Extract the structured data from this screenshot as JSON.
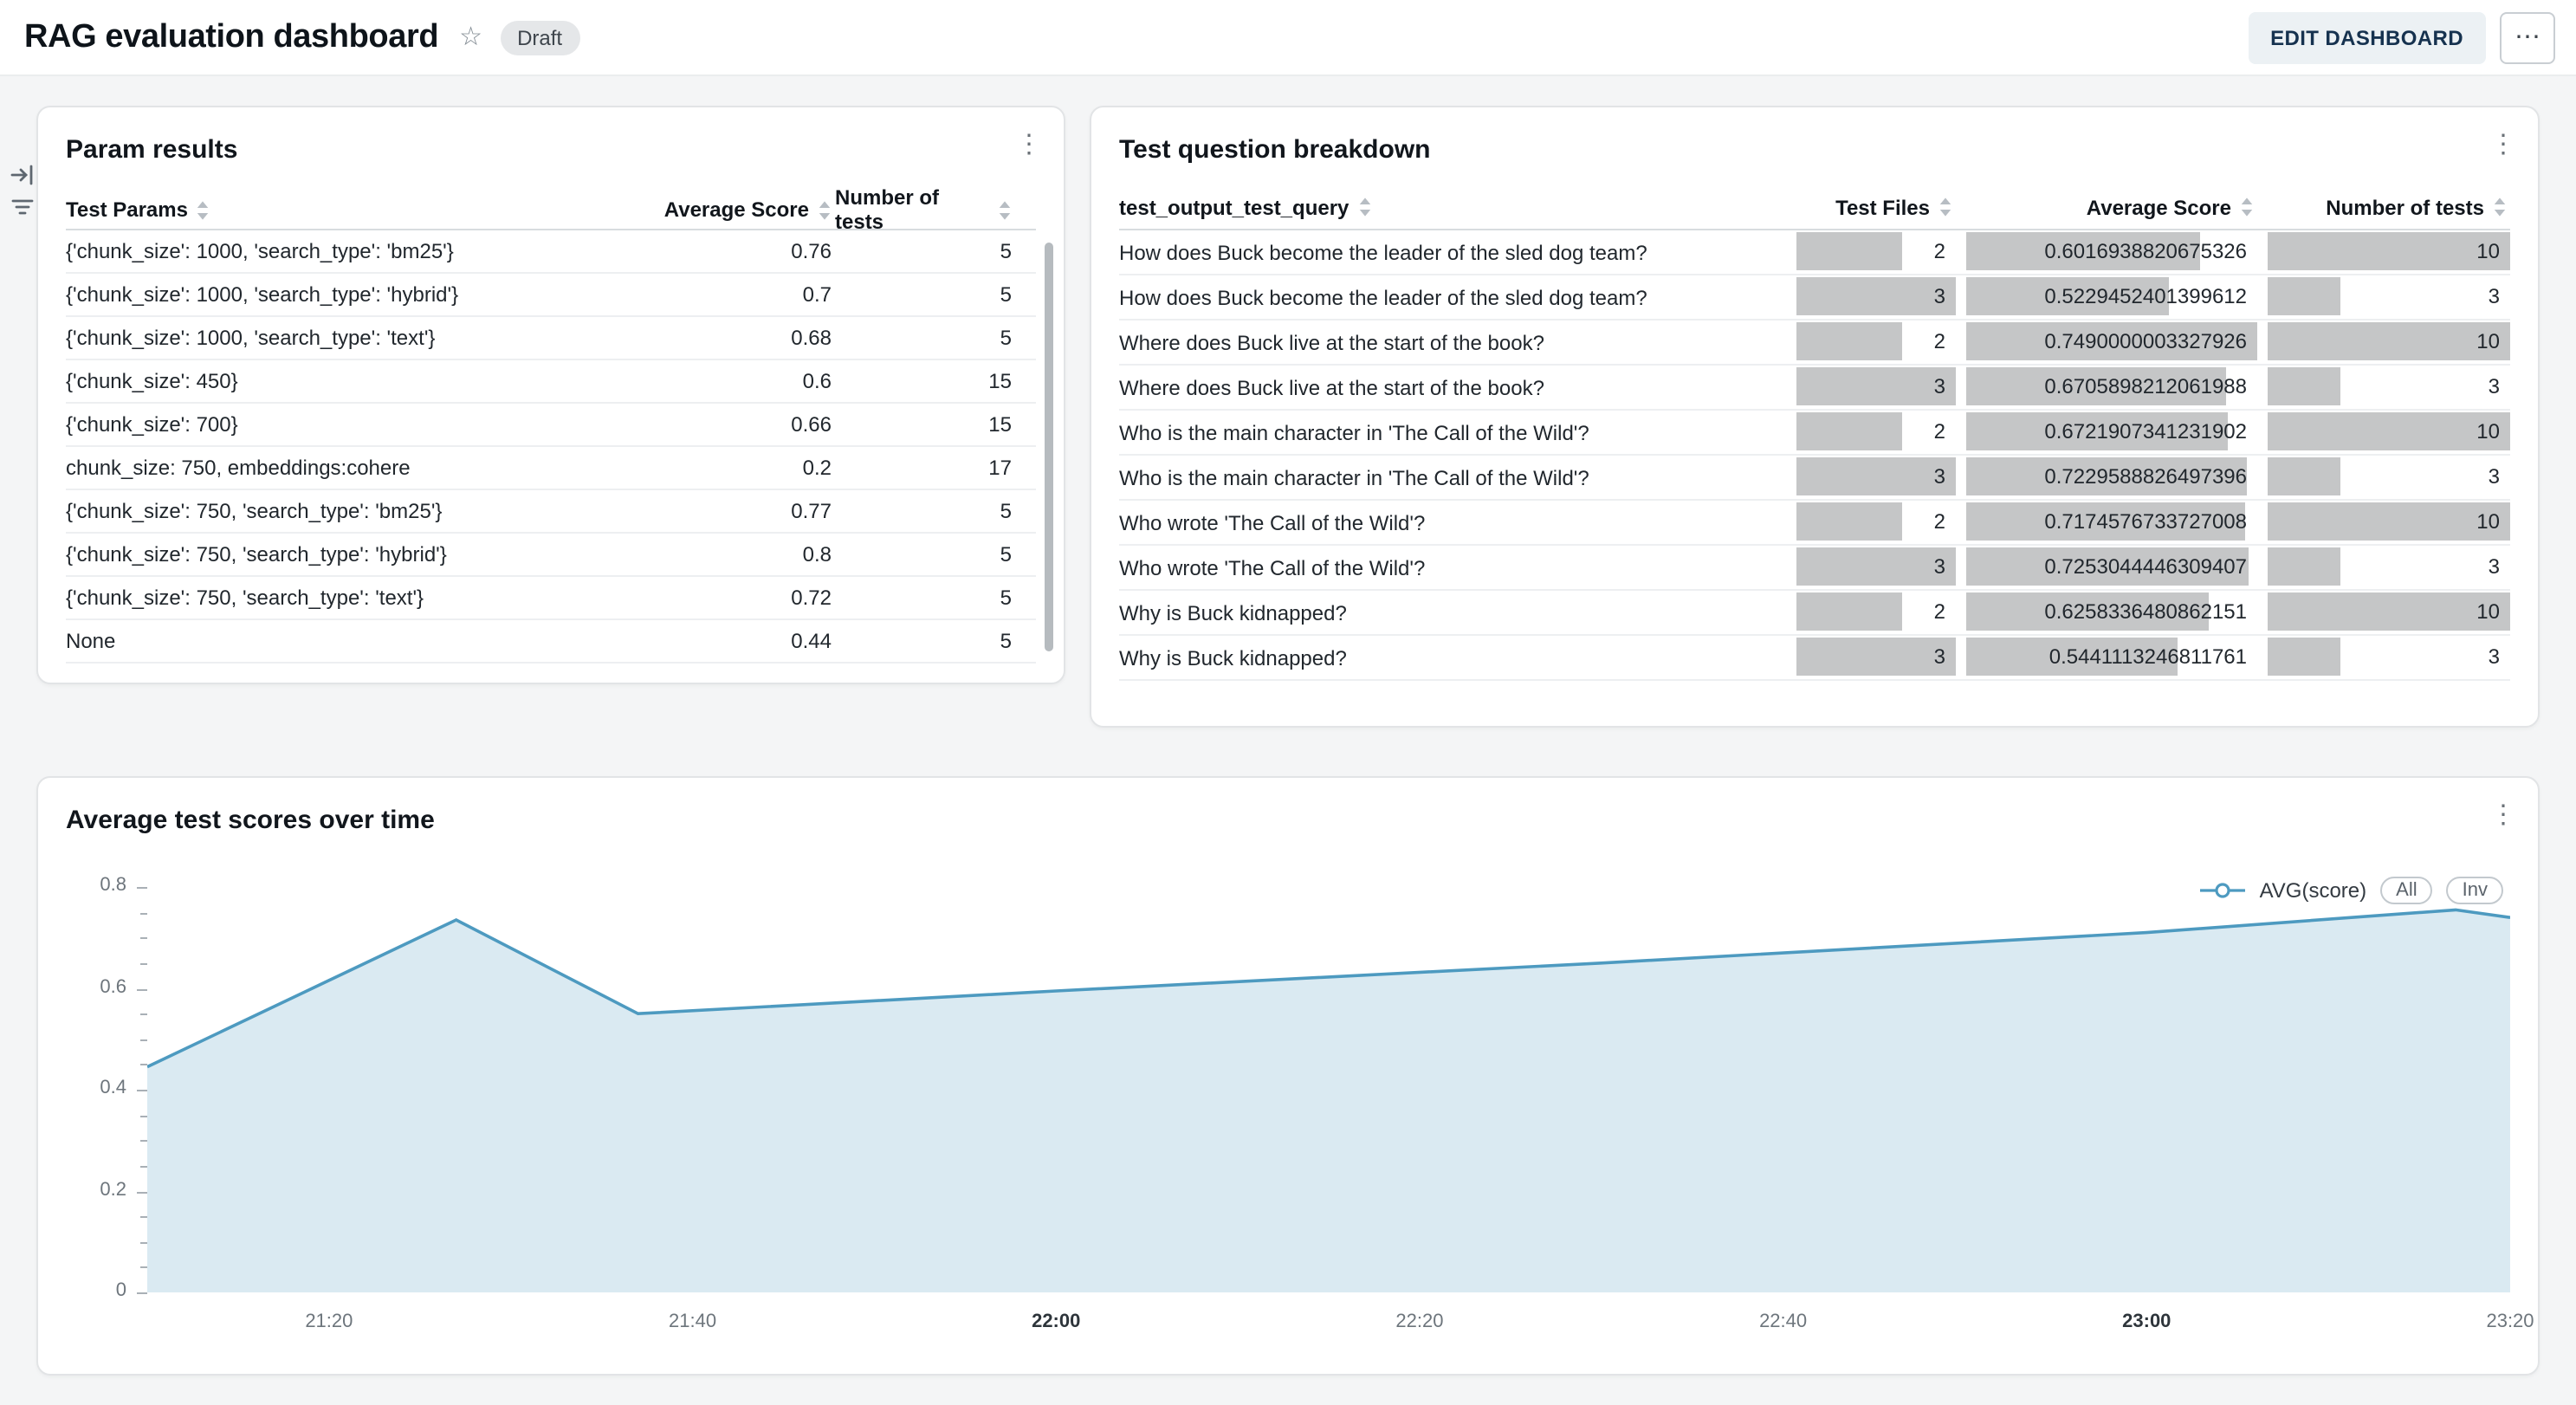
{
  "header": {
    "title": "RAG evaluation dashboard",
    "status_badge": "Draft",
    "edit_button": "EDIT DASHBOARD"
  },
  "icons": {
    "star": "☆",
    "kebab": "⋮",
    "ellipsis": "⋯"
  },
  "param_results": {
    "title": "Param results",
    "columns": [
      "Test Params",
      "Average Score",
      "Number of tests"
    ],
    "rows": [
      {
        "params": "{'chunk_size': 1000, 'search_type': 'bm25'}",
        "avg_score": "0.76",
        "num_tests": "5"
      },
      {
        "params": "{'chunk_size': 1000, 'search_type': 'hybrid'}",
        "avg_score": "0.7",
        "num_tests": "5"
      },
      {
        "params": "{'chunk_size': 1000, 'search_type': 'text'}",
        "avg_score": "0.68",
        "num_tests": "5"
      },
      {
        "params": "{'chunk_size': 450}",
        "avg_score": "0.6",
        "num_tests": "15"
      },
      {
        "params": "{'chunk_size': 700}",
        "avg_score": "0.66",
        "num_tests": "15"
      },
      {
        "params": "chunk_size: 750, embeddings:cohere",
        "avg_score": "0.2",
        "num_tests": "17"
      },
      {
        "params": "{'chunk_size': 750, 'search_type': 'bm25'}",
        "avg_score": "0.77",
        "num_tests": "5"
      },
      {
        "params": "{'chunk_size': 750, 'search_type': 'hybrid'}",
        "avg_score": "0.8",
        "num_tests": "5"
      },
      {
        "params": "{'chunk_size': 750, 'search_type': 'text'}",
        "avg_score": "0.72",
        "num_tests": "5"
      },
      {
        "params": "None",
        "avg_score": "0.44",
        "num_tests": "5"
      }
    ]
  },
  "question_breakdown": {
    "title": "Test question breakdown",
    "columns": [
      "test_output_test_query",
      "Test Files",
      "Average Score",
      "Number of tests"
    ],
    "bar_color": "#c5c6c7",
    "rows": [
      {
        "query": "How does Buck become the leader of the sled dog team?",
        "test_files": 2,
        "avg_score": "0.6016938820675326",
        "num_tests": 10
      },
      {
        "query": "How does Buck become the leader of the sled dog team?",
        "test_files": 3,
        "avg_score": "0.5229452401399612",
        "num_tests": 3
      },
      {
        "query": "Where does Buck live at the start of the book?",
        "test_files": 2,
        "avg_score": "0.7490000003327926",
        "num_tests": 10
      },
      {
        "query": "Where does Buck live at the start of the book?",
        "test_files": 3,
        "avg_score": "0.6705898212061988",
        "num_tests": 3
      },
      {
        "query": "Who is the main character in 'The Call of the Wild'?",
        "test_files": 2,
        "avg_score": "0.6721907341231902",
        "num_tests": 10
      },
      {
        "query": "Who is the main character in 'The Call of the Wild'?",
        "test_files": 3,
        "avg_score": "0.7229588826497396",
        "num_tests": 3
      },
      {
        "query": "Who wrote 'The Call of the Wild'?",
        "test_files": 2,
        "avg_score": "0.7174576733727008",
        "num_tests": 10
      },
      {
        "query": "Who wrote 'The Call of the Wild'?",
        "test_files": 3,
        "avg_score": "0.7253044446309407",
        "num_tests": 3
      },
      {
        "query": "Why is Buck kidnapped?",
        "test_files": 2,
        "avg_score": "0.6258336480862151",
        "num_tests": 10
      },
      {
        "query": "Why is Buck kidnapped?",
        "test_files": 3,
        "avg_score": "0.5441113246811761",
        "num_tests": 3
      }
    ]
  },
  "chart_panel": {
    "title": "Average test scores over time",
    "legend_label": "AVG(score)",
    "legend_buttons": [
      "All",
      "Inv"
    ]
  },
  "chart_data": {
    "type": "area",
    "title": "Average test scores over time",
    "series": [
      {
        "name": "AVG(score)",
        "points": [
          {
            "x": "21:10",
            "y": 0.445
          },
          {
            "x": "21:27",
            "y": 0.735
          },
          {
            "x": "21:37",
            "y": 0.55
          },
          {
            "x": "22:00",
            "y": 0.595
          },
          {
            "x": "22:30",
            "y": 0.65
          },
          {
            "x": "23:00",
            "y": 0.71
          },
          {
            "x": "23:17",
            "y": 0.755
          },
          {
            "x": "23:20",
            "y": 0.74
          }
        ]
      }
    ],
    "x_ticks": [
      "21:20",
      "21:40",
      "22:00",
      "22:20",
      "22:40",
      "23:00",
      "23:20"
    ],
    "x_ticks_bold": [
      "22:00",
      "23:00"
    ],
    "x_range": [
      "21:10",
      "23:20"
    ],
    "y_range": [
      0,
      0.8
    ],
    "y_major_step": 0.2,
    "y_minor_step": 0.05,
    "grid": false,
    "legend_position": "top-right",
    "line_color": "#4d9ac0",
    "fill_color": "#daeaf2"
  }
}
